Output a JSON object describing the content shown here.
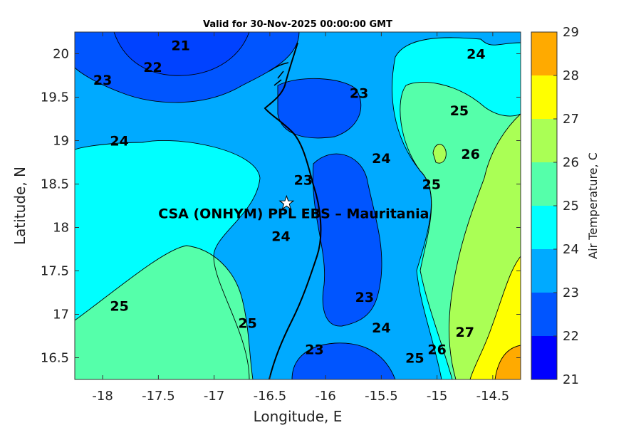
{
  "title": "Valid for 30-Nov-2025 00:00:00 GMT",
  "x_axis": {
    "label": "Longitude, E",
    "range": [
      -18.25,
      -14.25
    ],
    "ticks": [
      -18,
      -17.5,
      -17,
      -16.5,
      -16,
      -15.5,
      -15,
      -14.5
    ],
    "tick_labels": [
      "-18",
      "-17.5",
      "-17",
      "-16.5",
      "-16",
      "-15.5",
      "-15",
      "-14.5"
    ]
  },
  "y_axis": {
    "label": "Latitude, N",
    "range": [
      16.25,
      20.25
    ],
    "ticks": [
      16.5,
      17,
      17.5,
      18,
      18.5,
      19,
      19.5,
      20
    ],
    "tick_labels": [
      "16.5",
      "17",
      "17.5",
      "18",
      "18.5",
      "19",
      "19.5",
      "20"
    ]
  },
  "colorbar": {
    "label": "Air Temperature, C",
    "range": [
      21,
      29
    ],
    "ticks": [
      "21",
      "22",
      "23",
      "24",
      "25",
      "26",
      "27",
      "28",
      "29"
    ],
    "colors": [
      "#0000ff",
      "#0055ff",
      "#00aaff",
      "#00ffff",
      "#55ffaa",
      "#aaff55",
      "#ffff00",
      "#ffaa00"
    ]
  },
  "site": {
    "name": "CSA (ONHYM) PPL EBS  – Mauritania",
    "lon": -16.35,
    "lat": 18.28,
    "marker": "white-star"
  },
  "contour_labels": [
    {
      "text": "21",
      "lon": -17.3,
      "lat": 20.1
    },
    {
      "text": "22",
      "lon": -17.55,
      "lat": 19.85
    },
    {
      "text": "23",
      "lon": -18.0,
      "lat": 19.7
    },
    {
      "text": "24",
      "lon": -17.85,
      "lat": 19.0
    },
    {
      "text": "23",
      "lon": -15.7,
      "lat": 19.55
    },
    {
      "text": "23",
      "lon": -16.2,
      "lat": 18.55
    },
    {
      "text": "24",
      "lon": -16.4,
      "lat": 17.9
    },
    {
      "text": "24",
      "lon": -15.5,
      "lat": 18.8
    },
    {
      "text": "25",
      "lon": -15.05,
      "lat": 18.5
    },
    {
      "text": "24",
      "lon": -14.65,
      "lat": 20.0
    },
    {
      "text": "25",
      "lon": -14.8,
      "lat": 19.35
    },
    {
      "text": "26",
      "lon": -14.7,
      "lat": 18.85
    },
    {
      "text": "25",
      "lon": -17.85,
      "lat": 17.1
    },
    {
      "text": "25",
      "lon": -16.7,
      "lat": 16.9
    },
    {
      "text": "23",
      "lon": -15.65,
      "lat": 17.2
    },
    {
      "text": "24",
      "lon": -15.5,
      "lat": 16.85
    },
    {
      "text": "23",
      "lon": -16.1,
      "lat": 16.6
    },
    {
      "text": "25",
      "lon": -15.2,
      "lat": 16.5
    },
    {
      "text": "26",
      "lon": -15.0,
      "lat": 16.6
    },
    {
      "text": "27",
      "lon": -14.75,
      "lat": 16.8
    }
  ]
}
